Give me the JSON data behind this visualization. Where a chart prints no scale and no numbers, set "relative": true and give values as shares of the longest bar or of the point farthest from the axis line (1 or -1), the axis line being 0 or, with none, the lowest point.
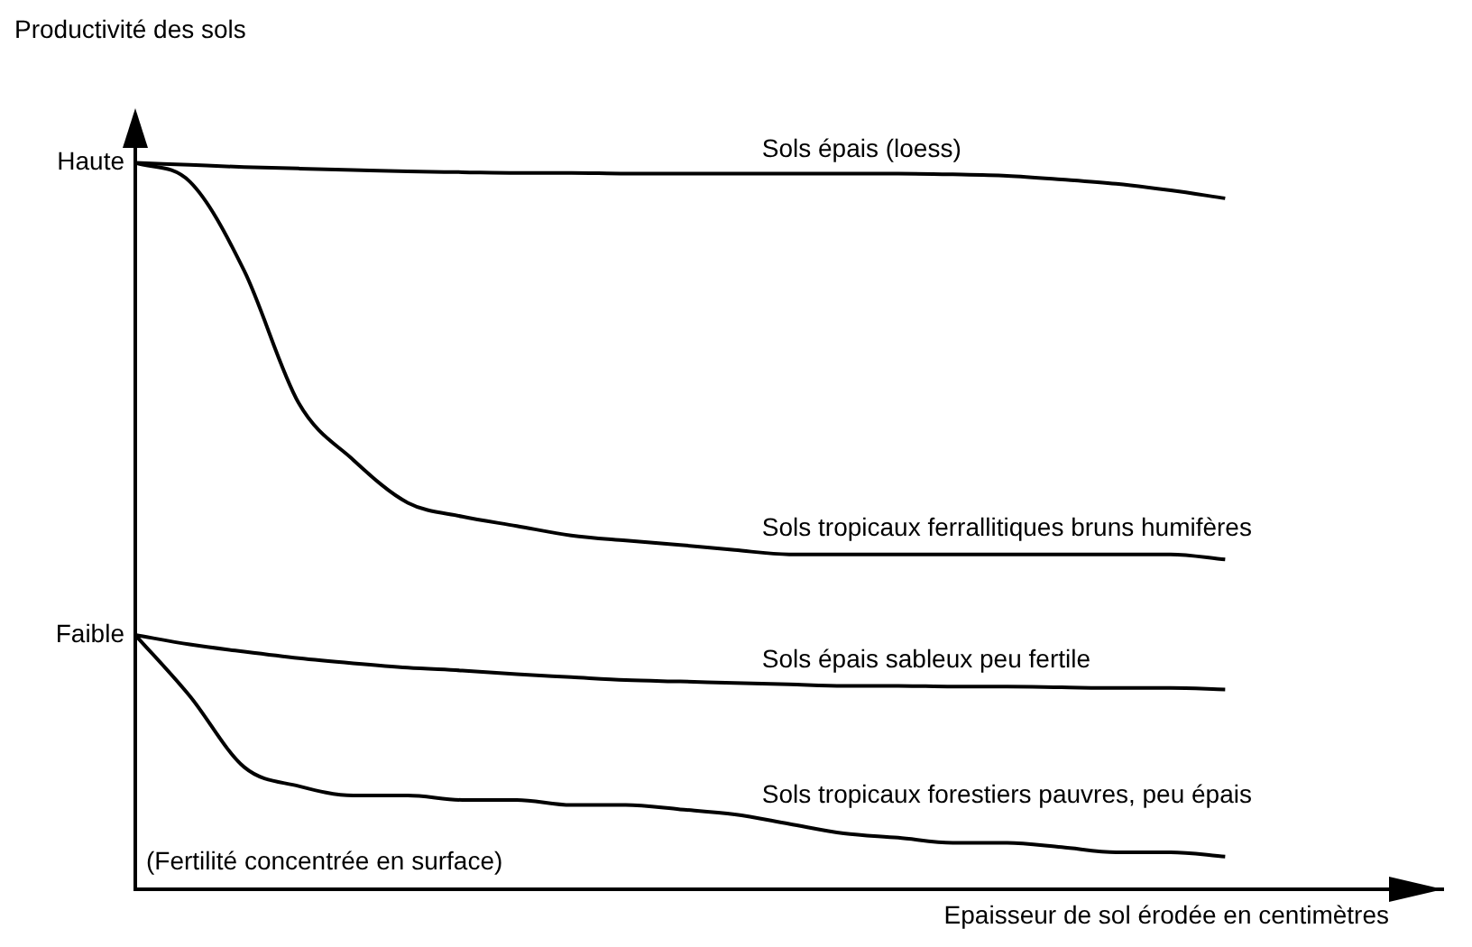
{
  "chart_data": {
    "type": "line",
    "ylabel": "Productivité des sols",
    "xlabel": "Epaisseur de sol érodée en centimètres",
    "categories": [
      null,
      null,
      null,
      null,
      null,
      null,
      null,
      null,
      null,
      null,
      null,
      null,
      null,
      null,
      null,
      null,
      null,
      null,
      null,
      null,
      null,
      null,
      null,
      null,
      null
    ],
    "relative": true,
    "grid": false,
    "legend": false,
    "marker": "none",
    "line_style": "solid",
    "series": [
      {
        "name": "Sols épais (loess)",
        "color": "#000000",
        "values": [
          1.0,
          0.997,
          0.994,
          0.992,
          0.99,
          0.988,
          0.987,
          0.986,
          0.986,
          0.985,
          0.985,
          0.985,
          0.985,
          0.985,
          0.985,
          0.984,
          0.982,
          0.977,
          0.971,
          0.962,
          0.951,
          null,
          null,
          null,
          null
        ]
      },
      {
        "name": "Sols tropicaux ferrallitiques bruns humifères",
        "color": "#000000",
        "values": [
          1.0,
          0.974,
          0.851,
          0.669,
          0.591,
          0.532,
          0.513,
          0.5,
          0.487,
          0.48,
          0.474,
          0.467,
          0.461,
          0.461,
          0.461,
          0.461,
          0.461,
          0.461,
          0.461,
          0.461,
          0.454,
          null,
          null,
          null,
          null
        ]
      },
      {
        "name": "Sols épais sableux peu fertile",
        "color": "#000000",
        "values": [
          0.35,
          0.337,
          0.327,
          0.318,
          0.311,
          0.305,
          0.301,
          0.296,
          0.292,
          0.288,
          0.286,
          0.284,
          0.282,
          0.28,
          0.28,
          0.279,
          0.279,
          0.278,
          0.277,
          0.277,
          0.275,
          null,
          null,
          null,
          null
        ]
      },
      {
        "name": "Sols tropicaux forestiers pauvres, peu épais",
        "color": "#000000",
        "values": [
          0.35,
          0.266,
          0.168,
          0.142,
          0.129,
          0.129,
          0.123,
          0.123,
          0.116,
          0.116,
          0.11,
          0.103,
          0.09,
          0.077,
          0.071,
          0.064,
          0.064,
          0.058,
          0.051,
          0.051,
          0.045,
          null,
          null,
          null,
          null
        ]
      }
    ],
    "annotations": [
      "Haute",
      "Faible",
      "(Fertilité concentrée en surface)"
    ]
  }
}
